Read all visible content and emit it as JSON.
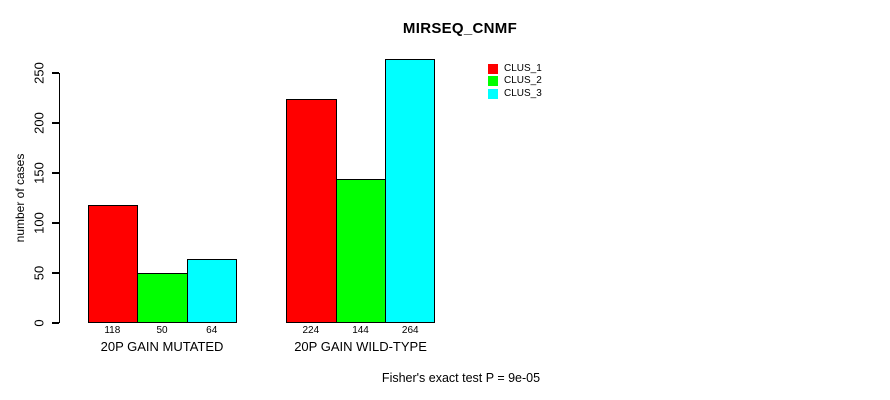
{
  "chart_data": {
    "type": "bar",
    "title": "MIRSEQ_CNMF",
    "xlabel": "",
    "ylabel": "number of cases",
    "categories": [
      "20P GAIN MUTATED",
      "20P GAIN WILD-TYPE"
    ],
    "series": [
      {
        "name": "CLUS_1",
        "color": "#ff0000",
        "values": [
          118,
          224
        ]
      },
      {
        "name": "CLUS_2",
        "color": "#00ff00",
        "values": [
          50,
          144
        ]
      },
      {
        "name": "CLUS_3",
        "color": "#00ffff",
        "values": [
          64,
          264
        ]
      }
    ],
    "bar_value_labels": [
      [
        118,
        50,
        64
      ],
      [
        224,
        144,
        264
      ]
    ],
    "yticks": [
      0,
      50,
      100,
      150,
      200,
      250
    ],
    "ylim": [
      0,
      250
    ],
    "grid": false,
    "legend_position": "top-right",
    "annotation": "Fisher's exact test P = 9e-05"
  },
  "legend": {
    "items": [
      {
        "label": "CLUS_1",
        "color": "#ff0000"
      },
      {
        "label": "CLUS_2",
        "color": "#00ff00"
      },
      {
        "label": "CLUS_3",
        "color": "#00ffff"
      }
    ]
  }
}
